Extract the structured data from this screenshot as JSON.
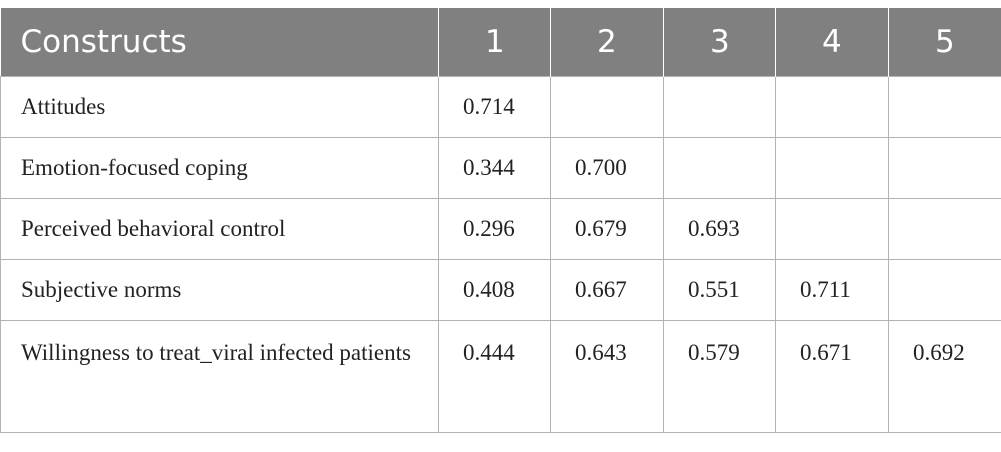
{
  "table": {
    "header": [
      "Constructs",
      "1",
      "2",
      "3",
      "4",
      "5"
    ],
    "rows": [
      {
        "construct": "Attitudes",
        "values": [
          "0.714",
          "",
          "",
          "",
          ""
        ]
      },
      {
        "construct": "Emotion-focused coping",
        "values": [
          "0.344",
          "0.700",
          "",
          "",
          ""
        ]
      },
      {
        "construct": "Perceived behavioral control",
        "values": [
          "0.296",
          "0.679",
          "0.693",
          "",
          ""
        ]
      },
      {
        "construct": "Subjective norms",
        "values": [
          "0.408",
          "0.667",
          "0.551",
          "0.711",
          ""
        ]
      },
      {
        "construct": "Willingness to treat_viral infected patients",
        "values": [
          "0.444",
          "0.643",
          "0.579",
          "0.671",
          "0.692"
        ]
      }
    ]
  }
}
